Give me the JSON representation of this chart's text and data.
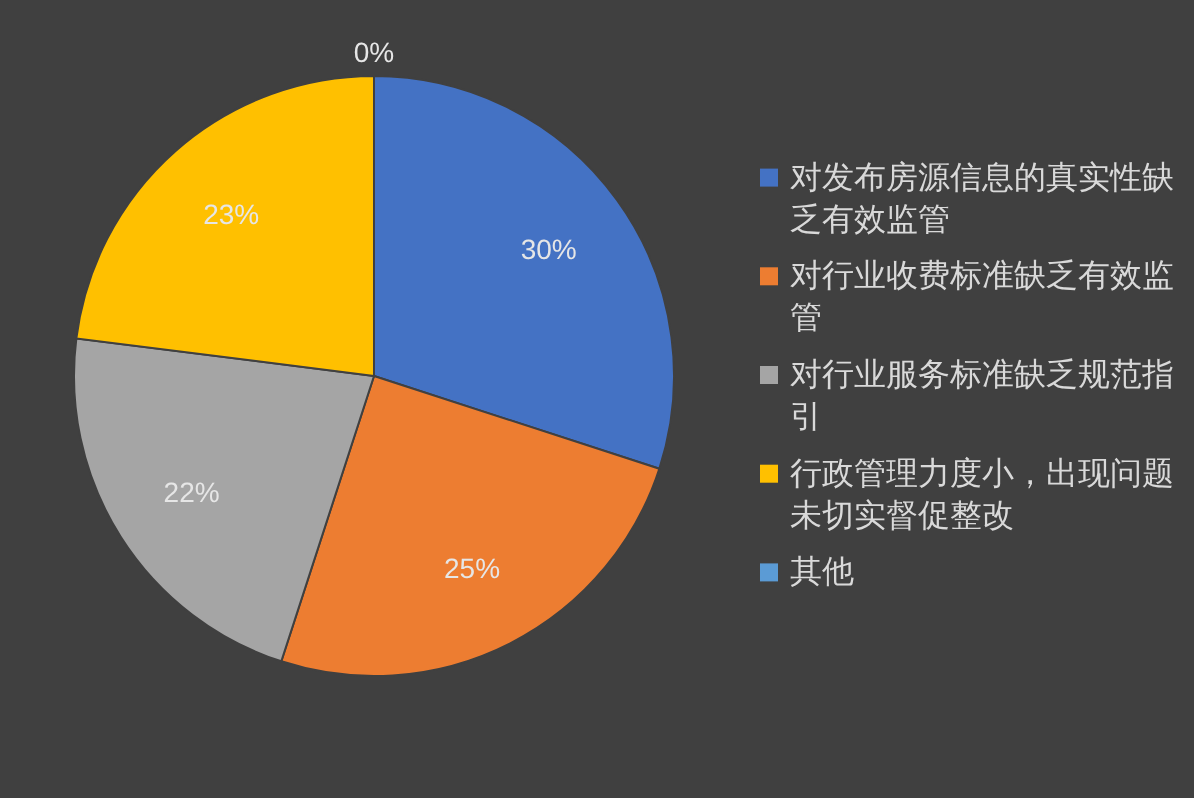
{
  "chart_data": {
    "type": "pie",
    "categories": [
      "对发布房源信息的真实性缺乏有效监管",
      "对行业收费标准缺乏有效监管",
      "对行业服务标准缺乏规范指引",
      "行政管理力度小，出现问题未切实督促整改",
      "其他"
    ],
    "values": [
      30,
      25,
      22,
      23,
      0
    ],
    "value_labels": [
      "30%",
      "25%",
      "22%",
      "23%",
      "0%"
    ],
    "colors": [
      "#4472c4",
      "#ed7d31",
      "#a5a5a5",
      "#ffc000",
      "#5b9bd5"
    ],
    "legend": "right"
  }
}
